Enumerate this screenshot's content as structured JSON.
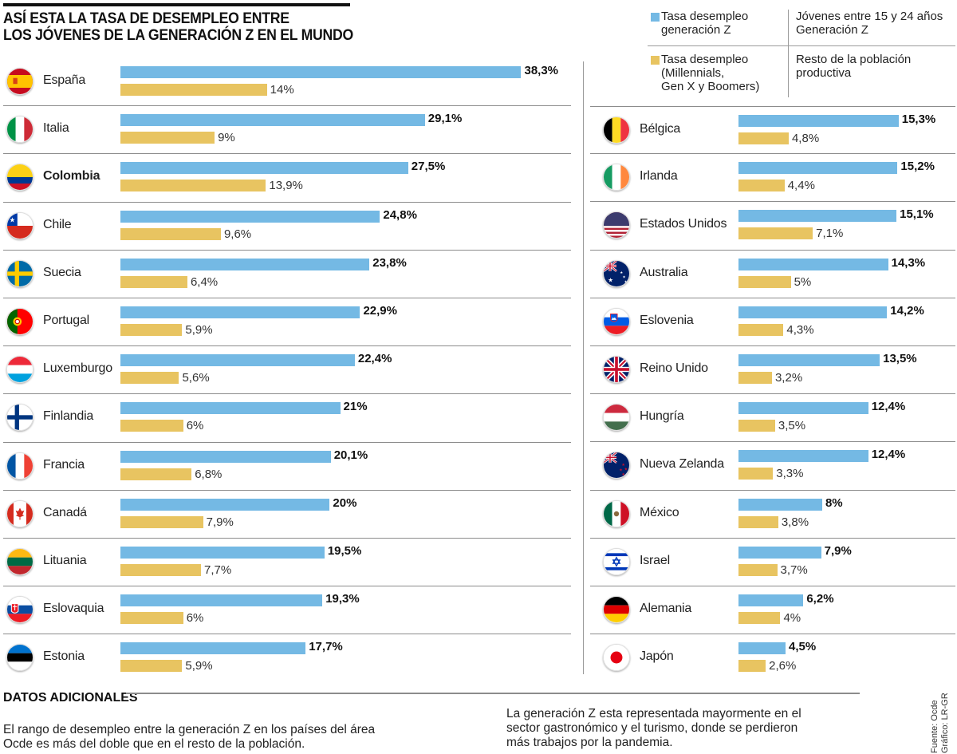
{
  "header": {
    "title_line1": "ASÍ ESTA LA TASA DE DESEMPLEO ENTRE",
    "title_line2": "LOS JÓVENES DE LA GENERACIÓN Z EN EL MUNDO"
  },
  "legend": {
    "items": [
      {
        "label": "Tasa desempleo\ngeneración Z",
        "description": "Jóvenes entre 15 y 24 años\nGeneración Z",
        "color": "#74b9e4"
      },
      {
        "label": "Tasa desempleo\n(Millennials,\nGen X y Boomers)",
        "description": "Resto de la población\nproductiva",
        "color": "#e8c461"
      }
    ]
  },
  "chart_data": {
    "type": "bar",
    "orientation": "horizontal",
    "title": "ASÍ ESTA LA TASA DE DESEMPLEO ENTRE LOS JÓVENES DE LA GENERACIÓN Z EN EL MUNDO",
    "xlabel": "",
    "ylabel": "",
    "unit": "%",
    "xlim": [
      0,
      40
    ],
    "grid": false,
    "legend_position": "top-right",
    "series": [
      {
        "name": "Tasa desempleo generación Z",
        "color": "#74b9e4"
      },
      {
        "name": "Tasa desempleo (Millennials, Gen X y Boomers)",
        "color": "#e8c461"
      }
    ],
    "panels": [
      {
        "position": "left",
        "rows": [
          {
            "country": "España",
            "flag": "spain-flag",
            "gen_z": 38.3,
            "gen_z_label": "38,3%",
            "rest": 14,
            "rest_label": "14%"
          },
          {
            "country": "Italia",
            "flag": "italy-flag",
            "gen_z": 29.1,
            "gen_z_label": "29,1%",
            "rest": 9,
            "rest_label": "9%"
          },
          {
            "country": "Colombia",
            "flag": "colombia-flag",
            "gen_z": 27.5,
            "gen_z_label": "27,5%",
            "rest": 13.9,
            "rest_label": "13,9%",
            "highlight": true
          },
          {
            "country": "Chile",
            "flag": "chile-flag",
            "gen_z": 24.8,
            "gen_z_label": "24,8%",
            "rest": 9.6,
            "rest_label": "9,6%"
          },
          {
            "country": "Suecia",
            "flag": "sweden-flag",
            "gen_z": 23.8,
            "gen_z_label": "23,8%",
            "rest": 6.4,
            "rest_label": "6,4%"
          },
          {
            "country": "Portugal",
            "flag": "portugal-flag",
            "gen_z": 22.9,
            "gen_z_label": "22,9%",
            "rest": 5.9,
            "rest_label": "5,9%"
          },
          {
            "country": "Luxemburgo",
            "flag": "luxembourg-flag",
            "gen_z": 22.4,
            "gen_z_label": "22,4%",
            "rest": 5.6,
            "rest_label": "5,6%"
          },
          {
            "country": "Finlandia",
            "flag": "finland-flag",
            "gen_z": 21,
            "gen_z_label": "21%",
            "rest": 6,
            "rest_label": "6%"
          },
          {
            "country": "Francia",
            "flag": "france-flag",
            "gen_z": 20.1,
            "gen_z_label": "20,1%",
            "rest": 6.8,
            "rest_label": "6,8%"
          },
          {
            "country": "Canadá",
            "flag": "canada-flag",
            "gen_z": 20,
            "gen_z_label": "20%",
            "rest": 7.9,
            "rest_label": "7,9%"
          },
          {
            "country": "Lituania",
            "flag": "lithuania-flag",
            "gen_z": 19.5,
            "gen_z_label": "19,5%",
            "rest": 7.7,
            "rest_label": "7,7%"
          },
          {
            "country": "Eslovaquia",
            "flag": "slovakia-flag",
            "gen_z": 19.3,
            "gen_z_label": "19,3%",
            "rest": 6,
            "rest_label": "6%"
          },
          {
            "country": "Estonia",
            "flag": "estonia-flag",
            "gen_z": 17.7,
            "gen_z_label": "17,7%",
            "rest": 5.9,
            "rest_label": "5,9%"
          }
        ]
      },
      {
        "position": "right",
        "rows": [
          {
            "country": "Bélgica",
            "flag": "belgium-flag",
            "gen_z": 15.3,
            "gen_z_label": "15,3%",
            "rest": 4.8,
            "rest_label": "4,8%"
          },
          {
            "country": "Irlanda",
            "flag": "ireland-flag",
            "gen_z": 15.2,
            "gen_z_label": "15,2%",
            "rest": 4.4,
            "rest_label": "4,4%"
          },
          {
            "country": "Estados Unidos",
            "flag": "usa-flag",
            "gen_z": 15.1,
            "gen_z_label": "15,1%",
            "rest": 7.1,
            "rest_label": "7,1%"
          },
          {
            "country": "Australia",
            "flag": "australia-flag",
            "gen_z": 14.3,
            "gen_z_label": "14,3%",
            "rest": 5,
            "rest_label": "5%"
          },
          {
            "country": "Eslovenia",
            "flag": "slovenia-flag",
            "gen_z": 14.2,
            "gen_z_label": "14,2%",
            "rest": 4.3,
            "rest_label": "4,3%"
          },
          {
            "country": "Reino Unido",
            "flag": "uk-flag",
            "gen_z": 13.5,
            "gen_z_label": "13,5%",
            "rest": 3.2,
            "rest_label": "3,2%"
          },
          {
            "country": "Hungría",
            "flag": "hungary-flag",
            "gen_z": 12.4,
            "gen_z_label": "12,4%",
            "rest": 3.5,
            "rest_label": "3,5%"
          },
          {
            "country": "Nueva Zelanda",
            "flag": "new-zealand-flag",
            "gen_z": 12.4,
            "gen_z_label": "12,4%",
            "rest": 3.3,
            "rest_label": "3,3%"
          },
          {
            "country": "México",
            "flag": "mexico-flag",
            "gen_z": 8,
            "gen_z_label": "8%",
            "rest": 3.8,
            "rest_label": "3,8%"
          },
          {
            "country": "Israel",
            "flag": "israel-flag",
            "gen_z": 7.9,
            "gen_z_label": "7,9%",
            "rest": 3.7,
            "rest_label": "3,7%"
          },
          {
            "country": "Alemania",
            "flag": "germany-flag",
            "gen_z": 6.2,
            "gen_z_label": "6,2%",
            "rest": 4,
            "rest_label": "4%"
          },
          {
            "country": "Japón",
            "flag": "japan-flag",
            "gen_z": 4.5,
            "gen_z_label": "4,5%",
            "rest": 2.6,
            "rest_label": "2,6%"
          }
        ]
      }
    ]
  },
  "footer": {
    "title": "DATOS ADICIONALES",
    "text1": "El rango de desempleo entre la generación Z en los países del área\nOcde es más del doble que en el resto de la población.",
    "text2": "La generación Z esta representada mayormente en el\nsector gastronómico y el turismo, donde se perdieron\nmás trabajos por la pandemia.",
    "credit": "Fuente: Ocde\nGráfico: LR-GR"
  }
}
